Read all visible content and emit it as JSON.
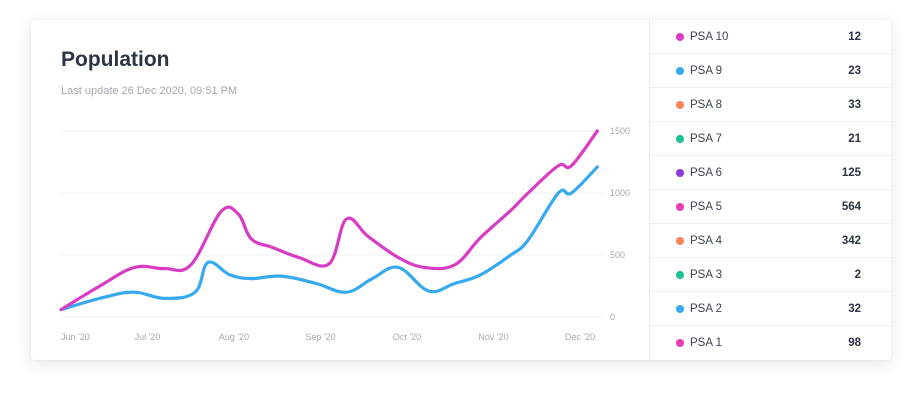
{
  "header": {
    "title": "Population",
    "subtitle": "Last update 26 Dec 2020, 09:51 PM"
  },
  "legend": [
    {
      "label": "PSA 10",
      "value": "12",
      "color": "#d93cc6"
    },
    {
      "label": "PSA 9",
      "value": "23",
      "color": "#36a9f0"
    },
    {
      "label": "PSA 8",
      "value": "33",
      "color": "#f7855a"
    },
    {
      "label": "PSA 7",
      "value": "21",
      "color": "#1fbf94"
    },
    {
      "label": "PSA 6",
      "value": "125",
      "color": "#8a3ddf"
    },
    {
      "label": "PSA 5",
      "value": "564",
      "color": "#e83fb4"
    },
    {
      "label": "PSA 4",
      "value": "342",
      "color": "#f7855a"
    },
    {
      "label": "PSA 3",
      "value": "2",
      "color": "#1fbf94"
    },
    {
      "label": "PSA 2",
      "value": "32",
      "color": "#36a9f0"
    },
    {
      "label": "PSA 1",
      "value": "98",
      "color": "#e83fb4"
    }
  ],
  "chart_data": {
    "type": "line",
    "title": "Population",
    "xlabel": "",
    "ylabel": "",
    "x_ticks": [
      "Jun '20",
      "Jul '20",
      "Aug '20",
      "Sep '20",
      "Oct '20",
      "Nov '20",
      "Dec '20"
    ],
    "y_ticks": [
      0,
      500,
      1000,
      1500
    ],
    "ylim": [
      0,
      1500
    ],
    "xlim": [
      0,
      6.35
    ],
    "grid": true,
    "y_axis_side": "right",
    "series": [
      {
        "color": "#d83cc4",
        "x": [
          0,
          0.45,
          0.85,
          1.2,
          1.5,
          1.85,
          2.05,
          2.2,
          2.45,
          2.75,
          3.1,
          3.3,
          3.55,
          3.9,
          4.2,
          4.55,
          4.85,
          5.2,
          5.4,
          5.75,
          5.9,
          6.2
        ],
        "y": [
          60,
          250,
          400,
          390,
          420,
          850,
          830,
          630,
          560,
          480,
          430,
          790,
          650,
          480,
          400,
          420,
          640,
          860,
          1000,
          1220,
          1220,
          1500
        ]
      },
      {
        "color": "#36a9f0",
        "x": [
          0,
          0.5,
          0.85,
          1.2,
          1.55,
          1.7,
          1.95,
          2.2,
          2.55,
          2.95,
          3.3,
          3.6,
          3.9,
          4.25,
          4.55,
          4.85,
          5.2,
          5.4,
          5.75,
          5.9,
          6.2
        ],
        "y": [
          60,
          160,
          200,
          150,
          200,
          440,
          340,
          310,
          330,
          270,
          200,
          310,
          400,
          210,
          270,
          340,
          500,
          620,
          1000,
          1000,
          1210
        ]
      }
    ]
  }
}
